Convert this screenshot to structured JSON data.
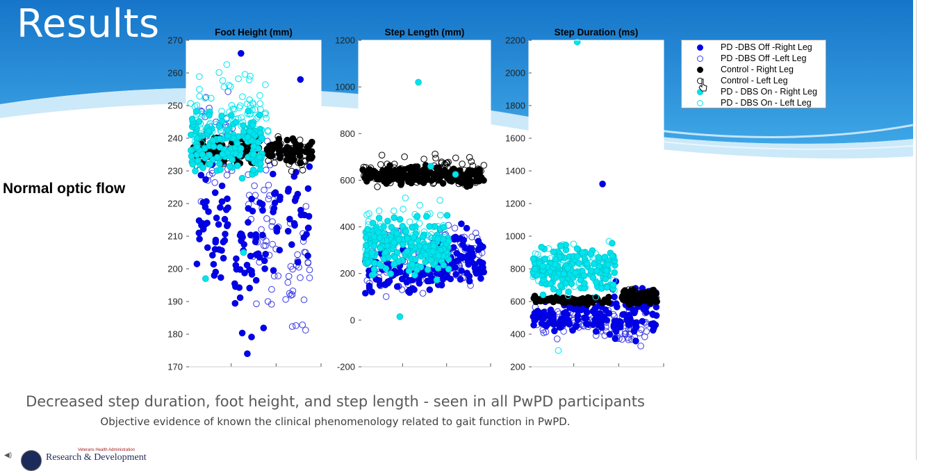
{
  "slide": {
    "title": "Results",
    "side_label": "Normal optic flow",
    "caption_main": "Decreased step duration, foot height, and step length - seen in all PwPD participants",
    "caption_sub": "Objective evidence of known the clinical phenomenology related to gait function in PwPD.",
    "footer": {
      "org_small": "Veterans Health Administration",
      "org": "Research & Development"
    },
    "colors": {
      "bg_blue": "#1f8fd9",
      "bg_light": "#bfe3f7"
    }
  },
  "legend": [
    {
      "label": "PD -DBS Off -Right Leg",
      "color": "#0000ee",
      "filled": true
    },
    {
      "label": "PD -DBS Off -Left Leg",
      "color": "#3a3ae6",
      "filled": false
    },
    {
      "label": "Control - Right Leg",
      "color": "#000000",
      "filled": true
    },
    {
      "label": "Control - Left Leg",
      "color": "#000000",
      "filled": false
    },
    {
      "label": "PD - DBS On - Right Leg",
      "color": "#00e5ee",
      "filled": true
    },
    {
      "label": "PD - DBS On - Left Leg",
      "color": "#00e5ee",
      "filled": false
    }
  ],
  "chart_data": [
    {
      "type": "scatter",
      "title": "Foot Height (mm)",
      "ylim": [
        170,
        270
      ],
      "yticks": [
        "170",
        "180",
        "190",
        "200",
        "210",
        "220",
        "230",
        "240",
        "250",
        "260",
        "270"
      ],
      "series": [
        {
          "name": "PD -DBS Off -Right Leg",
          "clusters": [
            {
              "x": [
                0.05,
                0.3
              ],
              "y": [
                187,
                237
              ],
              "n": 45
            },
            {
              "x": [
                0.35,
                0.6
              ],
              "y": [
                174,
                238
              ],
              "n": 45
            },
            {
              "x": [
                0.65,
                0.95
              ],
              "y": [
                192,
                240
              ],
              "n": 35
            }
          ],
          "points": [
            {
              "x": 0.4,
              "y": 266
            },
            {
              "x": 0.87,
              "y": 258
            },
            {
              "x": 0.45,
              "y": 174
            }
          ]
        },
        {
          "name": "PD -DBS Off -Left Leg",
          "clusters": [
            {
              "x": [
                0.05,
                0.4
              ],
              "y": [
                215,
                260
              ],
              "n": 45
            },
            {
              "x": [
                0.45,
                0.7
              ],
              "y": [
                178,
                250
              ],
              "n": 45
            },
            {
              "x": [
                0.75,
                0.95
              ],
              "y": [
                172,
                230
              ],
              "n": 30
            }
          ]
        },
        {
          "name": "Control - Right Leg",
          "clusters": [
            {
              "x": [
                0.0,
                0.55
              ],
              "y": [
                231,
                242
              ],
              "n": 100
            },
            {
              "x": [
                0.6,
                0.97
              ],
              "y": [
                231,
                241
              ],
              "n": 70
            }
          ]
        },
        {
          "name": "Control - Left Leg",
          "clusters": [
            {
              "x": [
                0.0,
                0.55
              ],
              "y": [
                229,
                243
              ],
              "n": 40
            },
            {
              "x": [
                0.6,
                0.97
              ],
              "y": [
                229,
                242
              ],
              "n": 30
            }
          ]
        },
        {
          "name": "PD - DBS On - Right Leg",
          "clusters": [
            {
              "x": [
                0.0,
                0.58
              ],
              "y": [
                222,
                252
              ],
              "n": 150
            }
          ],
          "points": [
            {
              "x": 0.12,
              "y": 197
            },
            {
              "x": 0.42,
              "y": 205
            }
          ]
        },
        {
          "name": "PD - DBS On - Left Leg",
          "clusters": [
            {
              "x": [
                0.0,
                0.62
              ],
              "y": [
                230,
                265
              ],
              "n": 90
            }
          ]
        }
      ]
    },
    {
      "type": "scatter",
      "title": "Step Length (mm)",
      "ylim": [
        -200,
        1200
      ],
      "yticks": [
        "-200",
        "0",
        "200",
        "400",
        "600",
        "800",
        "1000",
        "1200"
      ],
      "series": [
        {
          "name": "PD -DBS Off -Right Leg",
          "clusters": [
            {
              "x": [
                0.02,
                0.6
              ],
              "y": [
                60,
                320
              ],
              "n": 70
            },
            {
              "x": [
                0.6,
                0.98
              ],
              "y": [
                90,
                440
              ],
              "n": 90
            }
          ]
        },
        {
          "name": "PD -DBS Off -Left Leg",
          "clusters": [
            {
              "x": [
                0.02,
                0.6
              ],
              "y": [
                0,
                500
              ],
              "n": 50
            },
            {
              "x": [
                0.6,
                0.98
              ],
              "y": [
                90,
                460
              ],
              "n": 50
            }
          ]
        },
        {
          "name": "Control - Right Leg",
          "clusters": [
            {
              "x": [
                0.0,
                0.98
              ],
              "y": [
                560,
                680
              ],
              "n": 200
            }
          ]
        },
        {
          "name": "Control - Left Leg",
          "clusters": [
            {
              "x": [
                0.0,
                0.98
              ],
              "y": [
                545,
                735
              ],
              "n": 80
            }
          ]
        },
        {
          "name": "PD - DBS On - Right Leg",
          "clusters": [
            {
              "x": [
                0.02,
                0.7
              ],
              "y": [
                150,
                480
              ],
              "n": 220
            }
          ],
          "points": [
            {
              "x": 0.45,
              "y": 1020
            },
            {
              "x": 0.3,
              "y": 15
            },
            {
              "x": 0.55,
              "y": 660
            },
            {
              "x": 0.75,
              "y": 625
            }
          ]
        },
        {
          "name": "PD - DBS On - Left Leg",
          "clusters": [
            {
              "x": [
                0.02,
                0.7
              ],
              "y": [
                200,
                560
              ],
              "n": 60
            }
          ]
        }
      ]
    },
    {
      "type": "scatter",
      "title": "Step Duration (ms)",
      "ylim": [
        200,
        2200
      ],
      "yticks": [
        "200",
        "400",
        "600",
        "800",
        "1000",
        "1200",
        "1400",
        "1600",
        "1800",
        "2000",
        "2200"
      ],
      "series": [
        {
          "name": "PD -DBS Off -Right Leg",
          "clusters": [
            {
              "x": [
                0.0,
                0.6
              ],
              "y": [
                380,
                650
              ],
              "n": 80
            },
            {
              "x": [
                0.6,
                0.98
              ],
              "y": [
                300,
                800
              ],
              "n": 70
            }
          ],
          "points": [
            {
              "x": 0.55,
              "y": 1320
            }
          ]
        },
        {
          "name": "PD -DBS Off -Left Leg",
          "clusters": [
            {
              "x": [
                0.0,
                0.65
              ],
              "y": [
                330,
                620
              ],
              "n": 70
            },
            {
              "x": [
                0.65,
                0.98
              ],
              "y": [
                310,
                580
              ],
              "n": 40
            }
          ]
        },
        {
          "name": "Control - Right Leg",
          "clusters": [
            {
              "x": [
                0.0,
                0.6
              ],
              "y": [
                570,
                640
              ],
              "n": 70
            },
            {
              "x": [
                0.7,
                0.98
              ],
              "y": [
                570,
                680
              ],
              "n": 80
            }
          ]
        },
        {
          "name": "Control - Left Leg",
          "clusters": [
            {
              "x": [
                0.7,
                0.98
              ],
              "y": [
                560,
                700
              ],
              "n": 30
            }
          ]
        },
        {
          "name": "PD - DBS On - Right Leg",
          "clusters": [
            {
              "x": [
                0.0,
                0.65
              ],
              "y": [
                600,
                1000
              ],
              "n": 170
            }
          ],
          "points": [
            {
              "x": 0.35,
              "y": 2190
            }
          ]
        },
        {
          "name": "PD - DBS On - Left Leg",
          "clusters": [
            {
              "x": [
                0.0,
                0.65
              ],
              "y": [
                520,
                1090
              ],
              "n": 60
            }
          ],
          "points": [
            {
              "x": 0.2,
              "y": 300
            }
          ]
        }
      ]
    }
  ]
}
